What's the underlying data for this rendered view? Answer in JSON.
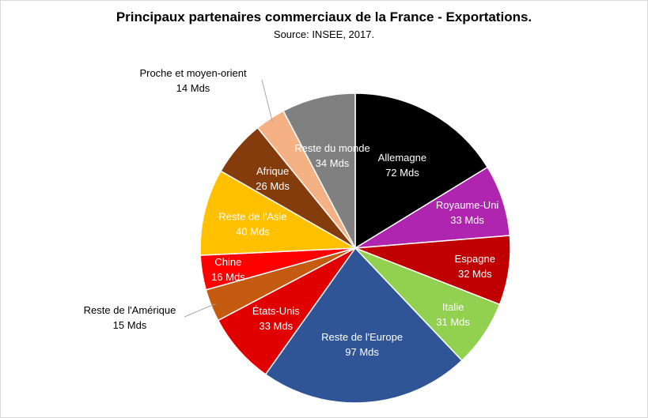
{
  "chart_data": {
    "type": "pie",
    "title": "Principaux partenaires commerciaux de la France - Exportations.",
    "subtitle": "Source: INSEE, 2017.",
    "slices": [
      {
        "name": "Allemagne",
        "value": 72,
        "value_label": "72 Mds",
        "color": "#000000",
        "label_color": "#ffffff",
        "label_position": "inside"
      },
      {
        "name": "Royaume-Uni",
        "value": 33,
        "value_label": "33 Mds",
        "color": "#b025b0",
        "label_color": "#ffffff",
        "label_position": "inside"
      },
      {
        "name": "Espagne",
        "value": 32,
        "value_label": "32 Mds",
        "color": "#c00000",
        "label_color": "#ffffff",
        "label_position": "inside"
      },
      {
        "name": "Italie",
        "value": 31,
        "value_label": "31 Mds",
        "color": "#92d050",
        "label_color": "#ffffff",
        "label_position": "inside"
      },
      {
        "name": "Reste de l'Europe",
        "value": 97,
        "value_label": "97 Mds",
        "color": "#2f5597",
        "label_color": "#ffffff",
        "label_position": "inside"
      },
      {
        "name": "États-Unis",
        "value": 33,
        "value_label": "33 Mds",
        "color": "#e00000",
        "label_color": "#ffffff",
        "label_position": "inside"
      },
      {
        "name": "Reste de l'Amérique",
        "value": 15,
        "value_label": "15 Mds",
        "color": "#c55a11",
        "label_color": "#000000",
        "label_position": "outside"
      },
      {
        "name": "Chine",
        "value": 16,
        "value_label": "16 Mds",
        "color": "#ff0000",
        "label_color": "#ffffff",
        "label_position": "inside"
      },
      {
        "name": "Reste de l'Asie",
        "value": 40,
        "value_label": "40 Mds",
        "color": "#ffc000",
        "label_color": "#ffffff",
        "label_position": "inside"
      },
      {
        "name": "Afrique",
        "value": 26,
        "value_label": "26 Mds",
        "color": "#843c0c",
        "label_color": "#ffffff",
        "label_position": "inside"
      },
      {
        "name": "Proche et moyen-orient",
        "value": 14,
        "value_label": "14 Mds",
        "color": "#f4b183",
        "label_color": "#000000",
        "label_position": "outside"
      },
      {
        "name": "Reste du monde",
        "value": 34,
        "value_label": "34 Mds",
        "color": "#808080",
        "label_color": "#ffffff",
        "label_position": "inside"
      }
    ]
  }
}
